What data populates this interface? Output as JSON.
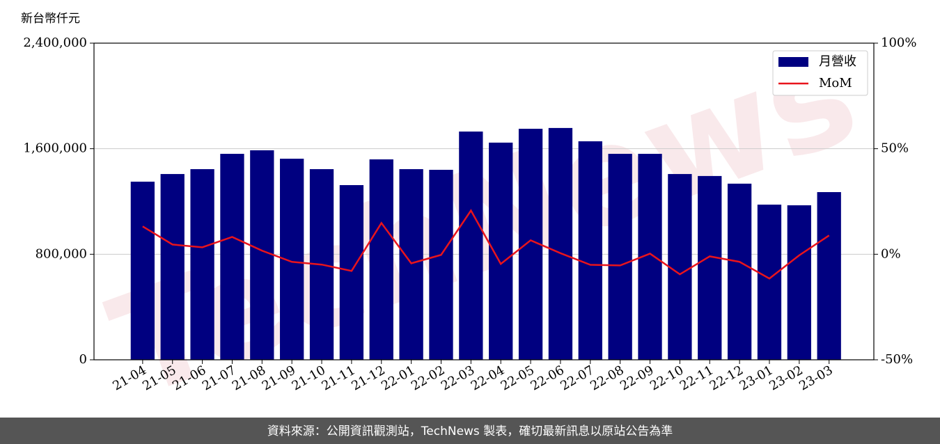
{
  "chart_data": {
    "type": "bar_line",
    "y_label": "新台幣仟元",
    "watermark": "TechNews",
    "footer": "資料來源：公開資訊觀測站，TechNews 製表，確切最新訊息以原站公告為準",
    "categories": [
      "21-04",
      "21-05",
      "21-06",
      "21-07",
      "21-08",
      "21-09",
      "21-10",
      "21-11",
      "21-12",
      "22-01",
      "22-02",
      "22-03",
      "22-04",
      "22-05",
      "22-06",
      "22-07",
      "22-08",
      "22-09",
      "22-10",
      "22-11",
      "22-12",
      "23-01",
      "23-02",
      "23-03"
    ],
    "series": [
      {
        "name": "月營收",
        "color": "#000080",
        "values": [
          1350000,
          1408000,
          1445000,
          1561000,
          1588000,
          1524000,
          1445000,
          1324000,
          1519000,
          1445000,
          1440000,
          1730000,
          1646000,
          1751000,
          1757000,
          1656000,
          1561000,
          1561000,
          1408000,
          1393000,
          1335000,
          1176000,
          1171000,
          1271000
        ]
      },
      {
        "name": "MoM",
        "color": "#e8141c",
        "axis": "y2",
        "values": [
          13.2,
          4.6,
          3.3,
          8.2,
          1.7,
          -3.6,
          -4.9,
          -7.9,
          14.8,
          -4.3,
          -0.3,
          20.7,
          -4.6,
          6.6,
          0.5,
          -5.0,
          -5.3,
          0.3,
          -9.5,
          -1.0,
          -3.6,
          -11.5,
          -0.5,
          8.9
        ]
      }
    ],
    "ylim": [
      0,
      2400000
    ],
    "yticks": [
      0,
      {
        "value": 800000,
        "label": "800,000"
      },
      {
        "value": 1600000,
        "label": "1,600,000"
      },
      {
        "value": 2400000,
        "label": "2,400,000"
      }
    ],
    "y2lim": [
      -50,
      100
    ],
    "y2ticks": [
      {
        "value": -50,
        "label": "-50%"
      },
      {
        "value": 0,
        "label": "0%"
      },
      {
        "value": 50,
        "label": "50%"
      },
      {
        "value": 100,
        "label": "100%"
      }
    ],
    "grid": true,
    "legend": "upper right"
  }
}
